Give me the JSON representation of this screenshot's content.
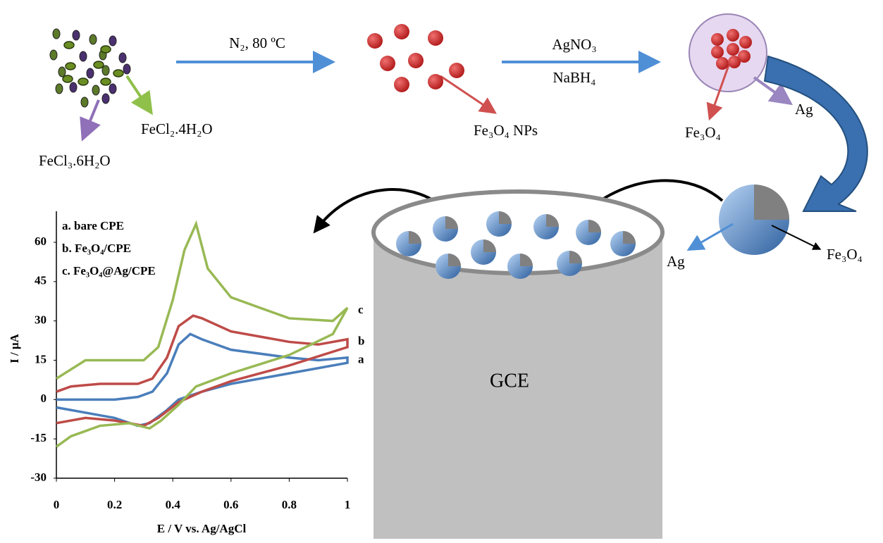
{
  "labels": {
    "step1": "N₂, 80 ºC",
    "step2_top": "AgNO₃",
    "step2_bottom": "NaBH₄",
    "fecl2": "FeCl₂.4H₂O",
    "fecl3": "FeCl₃.6H₂O",
    "nps": "Fe₃O₄ NPs",
    "core_left": "Fe₃O₄",
    "shell_left": "Ag",
    "shell_right": "Ag",
    "core_right": "Fe₃O₄",
    "electrode": "GCE"
  },
  "chart_data": {
    "type": "line",
    "xlabel": "E / V vs. Ag/AgCl",
    "ylabel": "I / μA",
    "xlim": [
      0,
      1
    ],
    "ylim": [
      -30,
      70
    ],
    "xticks": [
      0,
      0.2,
      0.4,
      0.6,
      0.8,
      1
    ],
    "yticks": [
      -30,
      -15,
      0,
      15,
      30,
      45,
      60
    ],
    "series": [
      {
        "name": "a. bare CPE",
        "end_label": "a",
        "color": "#4a7ebb",
        "x": [
          0,
          0.1,
          0.2,
          0.28,
          0.32,
          0.38,
          0.42,
          0.5,
          0.6,
          0.8,
          1,
          1,
          0.9,
          0.8,
          0.6,
          0.5,
          0.46,
          0.42,
          0.38,
          0.33,
          0.28,
          0.2,
          0.1,
          0
        ],
        "values": [
          -3,
          -5,
          -7,
          -10,
          -9,
          -4,
          0,
          3,
          6,
          10,
          14,
          16,
          15,
          16,
          19,
          23,
          25,
          21,
          10,
          3,
          1,
          0,
          0,
          0
        ]
      },
      {
        "name": "b. Fe₃O₄/CPE",
        "end_label": "b",
        "color": "#be4b48",
        "x": [
          0,
          0.1,
          0.2,
          0.3,
          0.35,
          0.42,
          0.5,
          0.6,
          0.8,
          1,
          1,
          0.9,
          0.8,
          0.6,
          0.5,
          0.47,
          0.42,
          0.38,
          0.33,
          0.28,
          0.15,
          0.05,
          0
        ],
        "values": [
          -9,
          -7,
          -8,
          -10,
          -7,
          -1,
          3,
          7,
          13,
          20,
          23,
          21,
          22,
          26,
          31,
          32,
          28,
          16,
          8,
          6,
          6,
          5,
          3
        ]
      },
      {
        "name": "c. Fe₃O₄@Ag/CPE",
        "end_label": "c",
        "color": "#98b954",
        "x": [
          0,
          0.05,
          0.15,
          0.25,
          0.32,
          0.36,
          0.42,
          0.48,
          0.6,
          0.8,
          0.95,
          1,
          0.95,
          0.8,
          0.6,
          0.52,
          0.48,
          0.44,
          0.4,
          0.35,
          0.3,
          0.2,
          0.1,
          0
        ],
        "values": [
          -18,
          -14,
          -10,
          -9,
          -11,
          -8,
          -2,
          5,
          10,
          17,
          25,
          35,
          30,
          31,
          39,
          50,
          67,
          57,
          38,
          20,
          15,
          15,
          15,
          8
        ]
      }
    ]
  }
}
